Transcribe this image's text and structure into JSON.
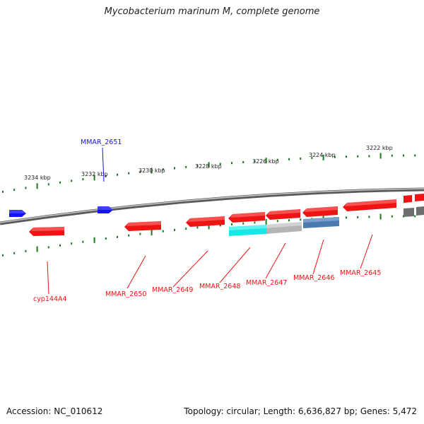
{
  "title": "Mycobacterium marinum M, complete genome",
  "footer": {
    "accession": "Accession: NC_010612",
    "topology": "Topology: circular; Length: 6,636,827 bp; Genes: 5,472"
  },
  "colors": {
    "backbone": "#8a8a8a",
    "ticks": "#1a7a1a",
    "forward_gene": "#1414ee",
    "reverse_gene": "#ee1414",
    "cyan_feature": "#19e6e6",
    "grey_feature": "#b4b4b4",
    "steel_feature": "#4a7ab0",
    "dark_grey_feature": "#6e6e6e"
  },
  "scale_labels": [
    "3234 kbp",
    "3232 kbp",
    "3230 kbp",
    "3228 kbp",
    "3226 kbp",
    "3224 kbp",
    "3222 kbp"
  ],
  "gene_labels": {
    "mmar_2651": "MMAR_2651",
    "cyp144a4": "cyp144A4",
    "mmar_2650": "MMAR_2650",
    "mmar_2649": "MMAR_2649",
    "mmar_2648": "MMAR_2648",
    "mmar_2647": "MMAR_2647",
    "mmar_2646": "MMAR_2646",
    "mmar_2645": "MMAR_2645"
  }
}
